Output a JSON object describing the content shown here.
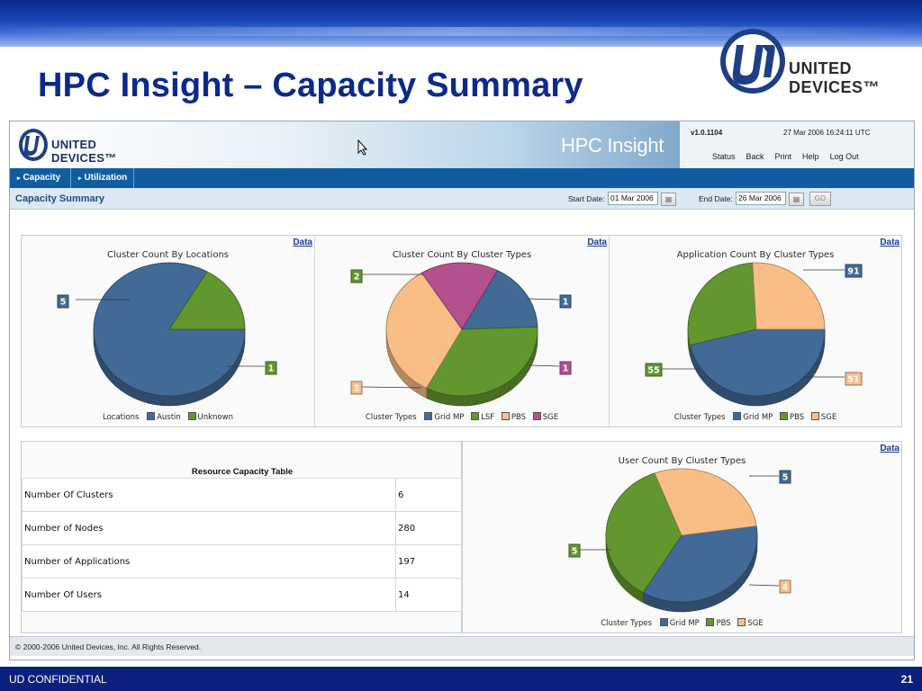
{
  "slide": {
    "title": "HPC Insight – Capacity Summary",
    "brand": "UNITED DEVICES™",
    "footer_left": "UD CONFIDENTIAL",
    "page_number": "21"
  },
  "app": {
    "logo_text": "UNITED DEVICES™",
    "product_name": "HPC Insight",
    "version": "v1.0.1104",
    "timestamp": "27 Mar 2006 16:24:11 UTC",
    "nav": [
      "Status",
      "Back",
      "Print",
      "Help",
      "Log Out"
    ],
    "tabs": [
      "Capacity",
      "Utilization"
    ],
    "page_title": "Capacity Summary",
    "start_date_label": "Start Date:",
    "start_date": "01 Mar 2006",
    "end_date_label": "End Date:",
    "end_date": "26 Mar 2006",
    "go_label": "GO",
    "data_link": "Data",
    "copyright": "© 2000-2006 United Devices, Inc. All Rights Reserved."
  },
  "colors": {
    "grid_mp": "#416a97",
    "austin": "#416a97",
    "lsf": "#62972f",
    "unknown": "#62972f",
    "pbs": "#f9be86",
    "sge": "#b5508f",
    "header_blue": "#0f5da0",
    "slide_title": "#0b2a8a"
  },
  "resource_table": {
    "title": "Resource Capacity Table",
    "rows": [
      {
        "label": "Number Of Clusters",
        "value": "6"
      },
      {
        "label": "Number of Nodes",
        "value": "280"
      },
      {
        "label": "Number of Applications",
        "value": "197"
      },
      {
        "label": "Number Of Users",
        "value": "14"
      }
    ]
  },
  "chart_data": [
    {
      "type": "pie",
      "title": "Cluster Count By Locations",
      "legend_title": "Locations",
      "categories": [
        "Austin",
        "Unknown"
      ],
      "values": [
        5,
        1
      ],
      "colors": [
        "#416a97",
        "#62972f"
      ]
    },
    {
      "type": "pie",
      "title": "Cluster Count By Cluster Types",
      "legend_title": "Cluster Types",
      "categories": [
        "Grid MP",
        "LSF",
        "PBS",
        "SGE"
      ],
      "values": [
        1,
        2,
        2,
        1
      ],
      "colors": [
        "#416a97",
        "#62972f",
        "#f9be86",
        "#b5508f"
      ]
    },
    {
      "type": "pie",
      "title": "Application Count By Cluster Types",
      "legend_title": "Cluster Types",
      "categories": [
        "Grid MP",
        "PBS",
        "SGE"
      ],
      "values": [
        91,
        55,
        51
      ],
      "colors": [
        "#416a97",
        "#62972f",
        "#f9be86"
      ]
    },
    {
      "type": "pie",
      "title": "User Count By Cluster Types",
      "legend_title": "Cluster Types",
      "categories": [
        "Grid MP",
        "PBS",
        "SGE"
      ],
      "values": [
        5,
        5,
        4
      ],
      "colors": [
        "#416a97",
        "#62972f",
        "#f9be86"
      ]
    }
  ]
}
